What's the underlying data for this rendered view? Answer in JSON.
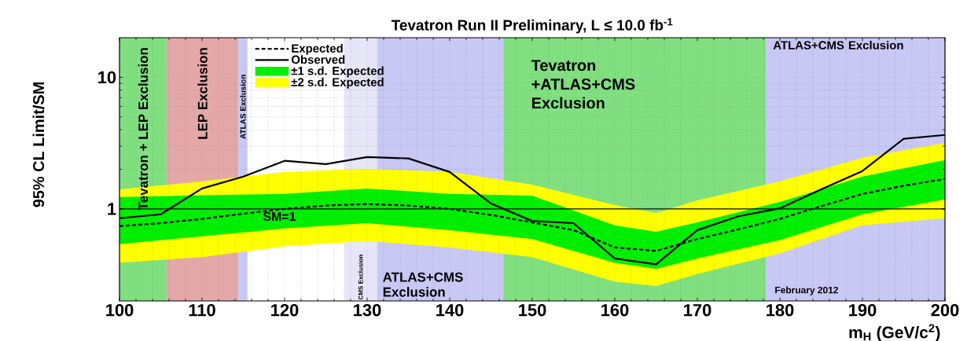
{
  "chart_data": {
    "type": "line",
    "title": "Tevatron Run II Preliminary, L ≤ 10.0 fb$^{-1}$",
    "xlabel": "m$_{H}$ (GeV/c$^{2}$)",
    "ylabel": "95% CL Limit/SM",
    "log": "y",
    "grid": true,
    "legend": "top left",
    "xlim": [
      100,
      200
    ],
    "xticks": [
      100,
      110,
      120,
      130,
      140,
      150,
      160,
      170,
      180,
      190,
      200
    ],
    "ylim": [
      0.2,
      20
    ],
    "yticks": [
      1,
      10
    ],
    "series": [
      {
        "name": "Expected",
        "color": "#000000",
        "line_style": "dashed",
        "x": [
          100,
          105,
          110,
          115,
          120,
          125,
          130,
          135,
          140,
          145,
          150,
          155,
          160,
          165,
          170,
          175,
          180,
          185,
          190,
          195,
          200
        ],
        "values": [
          0.74,
          0.78,
          0.84,
          0.92,
          1.0,
          1.06,
          1.09,
          1.06,
          1.0,
          0.9,
          0.79,
          0.69,
          0.51,
          0.48,
          0.59,
          0.7,
          0.84,
          1.05,
          1.3,
          1.5,
          1.69
        ]
      },
      {
        "name": "Observed",
        "color": "#000000",
        "line_style": "solid",
        "x": [
          100,
          105,
          110,
          115,
          120,
          125,
          130,
          135,
          140,
          145,
          150,
          155,
          160,
          165,
          170,
          175,
          180,
          185,
          190,
          195,
          200
        ],
        "values": [
          0.85,
          0.91,
          1.43,
          1.76,
          2.32,
          2.19,
          2.48,
          2.42,
          1.91,
          1.1,
          0.81,
          0.78,
          0.42,
          0.38,
          0.69,
          0.88,
          1.01,
          1.41,
          1.94,
          3.41,
          3.65
        ]
      },
      {
        "name": "±1 s.d. Expected",
        "type": "area",
        "color": "#00ee00",
        "x": [
          100,
          110,
          120,
          130,
          140,
          150,
          160,
          165,
          170,
          180,
          190,
          200
        ],
        "values": [
          null,
          null,
          null,
          null,
          null,
          null,
          null,
          null,
          null,
          null,
          null,
          null
        ],
        "lower": [
          0.54,
          0.62,
          0.71,
          0.78,
          0.69,
          0.59,
          0.39,
          0.35,
          0.42,
          0.58,
          0.91,
          1.18
        ],
        "upper": [
          1.23,
          1.27,
          1.3,
          1.43,
          1.3,
          1.26,
          0.75,
          0.67,
          0.79,
          1.13,
          1.76,
          2.35
        ]
      },
      {
        "name": "±2 s.d. Expected",
        "type": "area",
        "color": "#ffff00",
        "x": [
          100,
          110,
          120,
          130,
          140,
          150,
          160,
          165,
          170,
          180,
          190,
          200
        ],
        "values": [
          null,
          null,
          null,
          null,
          null,
          null,
          null,
          null,
          null,
          null,
          null,
          null
        ],
        "lower": [
          0.39,
          0.43,
          0.52,
          0.57,
          0.51,
          0.43,
          0.28,
          0.26,
          0.32,
          0.46,
          0.75,
          0.85
        ],
        "upper": [
          1.41,
          1.62,
          1.91,
          2.02,
          1.91,
          1.53,
          1.07,
          0.93,
          1.16,
          1.62,
          2.45,
          3.18
        ]
      }
    ],
    "bands": [
      {
        "axis": "x",
        "from": 100,
        "to": 105.7,
        "label": "Tevatron + LEP Exclusion",
        "color": "#80e080"
      },
      {
        "axis": "x",
        "from": 105.7,
        "to": 114.4,
        "label": "LEP Exclusion",
        "color": "#e4a8a8"
      },
      {
        "axis": "x",
        "from": 114.4,
        "to": 115.5,
        "label": "ATLAS Exclusion",
        "color": "#c8c8f5"
      },
      {
        "axis": "x",
        "from": 127.2,
        "to": 131.2,
        "label": "CMS Exclusion",
        "color": "#e6e6f8"
      },
      {
        "axis": "x",
        "from": 131.2,
        "to": 146.5,
        "label": "ATLAS+CMS Exclusion",
        "color": "#c8c8f5"
      },
      {
        "axis": "x",
        "from": 146.5,
        "to": 178.3,
        "label": "Tevatron +ATLAS+CMS Exclusion",
        "color": "#80e080"
      },
      {
        "axis": "x",
        "from": 178.3,
        "to": 200,
        "label": "ATLAS+CMS Exclusion",
        "color": "#c8c8f5"
      }
    ],
    "ref_lines": [
      {
        "axis": "y",
        "value": 1,
        "label": "SM=1",
        "color": "#000000"
      }
    ],
    "annotations": [
      "February 2012"
    ]
  }
}
